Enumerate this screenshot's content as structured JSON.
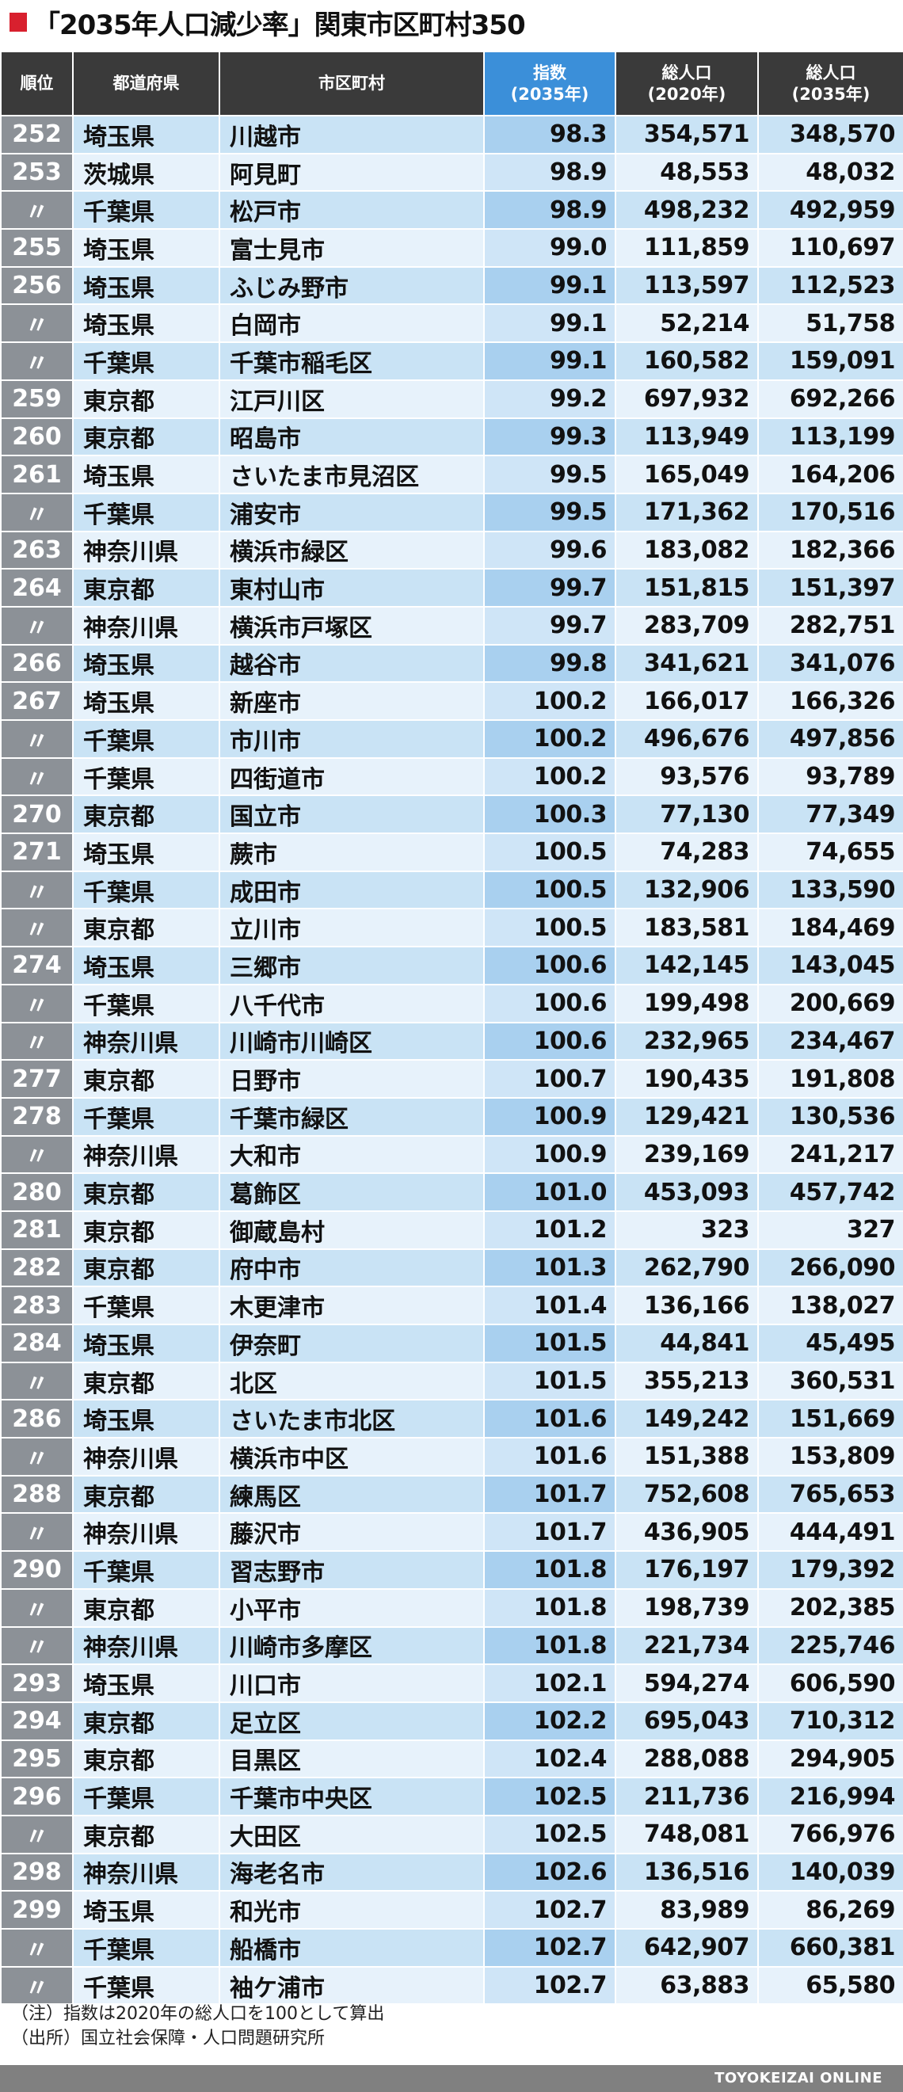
{
  "title": "「2035年人口減少率」関東市区町村350",
  "header": {
    "rank": "順位",
    "pref": "都道府県",
    "city": "市区町村",
    "index_l1": "指数",
    "index_l2": "(2035年)",
    "pop2020_l1": "総人口",
    "pop2020_l2": "(2020年)",
    "pop2035_l1": "総人口",
    "pop2035_l2": "(2035年)"
  },
  "rows": [
    {
      "rank": "252",
      "pref": "埼玉県",
      "city": "川越市",
      "index": "98.3",
      "pop2020": "354,571",
      "pop2035": "348,570"
    },
    {
      "rank": "253",
      "pref": "茨城県",
      "city": "阿見町",
      "index": "98.9",
      "pop2020": "48,553",
      "pop2035": "48,032"
    },
    {
      "rank": "〃",
      "pref": "千葉県",
      "city": "松戸市",
      "index": "98.9",
      "pop2020": "498,232",
      "pop2035": "492,959"
    },
    {
      "rank": "255",
      "pref": "埼玉県",
      "city": "富士見市",
      "index": "99.0",
      "pop2020": "111,859",
      "pop2035": "110,697"
    },
    {
      "rank": "256",
      "pref": "埼玉県",
      "city": "ふじみ野市",
      "index": "99.1",
      "pop2020": "113,597",
      "pop2035": "112,523"
    },
    {
      "rank": "〃",
      "pref": "埼玉県",
      "city": "白岡市",
      "index": "99.1",
      "pop2020": "52,214",
      "pop2035": "51,758"
    },
    {
      "rank": "〃",
      "pref": "千葉県",
      "city": "千葉市稲毛区",
      "index": "99.1",
      "pop2020": "160,582",
      "pop2035": "159,091"
    },
    {
      "rank": "259",
      "pref": "東京都",
      "city": "江戸川区",
      "index": "99.2",
      "pop2020": "697,932",
      "pop2035": "692,266"
    },
    {
      "rank": "260",
      "pref": "東京都",
      "city": "昭島市",
      "index": "99.3",
      "pop2020": "113,949",
      "pop2035": "113,199"
    },
    {
      "rank": "261",
      "pref": "埼玉県",
      "city": "さいたま市見沼区",
      "index": "99.5",
      "pop2020": "165,049",
      "pop2035": "164,206"
    },
    {
      "rank": "〃",
      "pref": "千葉県",
      "city": "浦安市",
      "index": "99.5",
      "pop2020": "171,362",
      "pop2035": "170,516"
    },
    {
      "rank": "263",
      "pref": "神奈川県",
      "city": "横浜市緑区",
      "index": "99.6",
      "pop2020": "183,082",
      "pop2035": "182,366"
    },
    {
      "rank": "264",
      "pref": "東京都",
      "city": "東村山市",
      "index": "99.7",
      "pop2020": "151,815",
      "pop2035": "151,397"
    },
    {
      "rank": "〃",
      "pref": "神奈川県",
      "city": "横浜市戸塚区",
      "index": "99.7",
      "pop2020": "283,709",
      "pop2035": "282,751"
    },
    {
      "rank": "266",
      "pref": "埼玉県",
      "city": "越谷市",
      "index": "99.8",
      "pop2020": "341,621",
      "pop2035": "341,076"
    },
    {
      "rank": "267",
      "pref": "埼玉県",
      "city": "新座市",
      "index": "100.2",
      "pop2020": "166,017",
      "pop2035": "166,326"
    },
    {
      "rank": "〃",
      "pref": "千葉県",
      "city": "市川市",
      "index": "100.2",
      "pop2020": "496,676",
      "pop2035": "497,856"
    },
    {
      "rank": "〃",
      "pref": "千葉県",
      "city": "四街道市",
      "index": "100.2",
      "pop2020": "93,576",
      "pop2035": "93,789"
    },
    {
      "rank": "270",
      "pref": "東京都",
      "city": "国立市",
      "index": "100.3",
      "pop2020": "77,130",
      "pop2035": "77,349"
    },
    {
      "rank": "271",
      "pref": "埼玉県",
      "city": "蕨市",
      "index": "100.5",
      "pop2020": "74,283",
      "pop2035": "74,655"
    },
    {
      "rank": "〃",
      "pref": "千葉県",
      "city": "成田市",
      "index": "100.5",
      "pop2020": "132,906",
      "pop2035": "133,590"
    },
    {
      "rank": "〃",
      "pref": "東京都",
      "city": "立川市",
      "index": "100.5",
      "pop2020": "183,581",
      "pop2035": "184,469"
    },
    {
      "rank": "274",
      "pref": "埼玉県",
      "city": "三郷市",
      "index": "100.6",
      "pop2020": "142,145",
      "pop2035": "143,045"
    },
    {
      "rank": "〃",
      "pref": "千葉県",
      "city": "八千代市",
      "index": "100.6",
      "pop2020": "199,498",
      "pop2035": "200,669"
    },
    {
      "rank": "〃",
      "pref": "神奈川県",
      "city": "川崎市川崎区",
      "index": "100.6",
      "pop2020": "232,965",
      "pop2035": "234,467"
    },
    {
      "rank": "277",
      "pref": "東京都",
      "city": "日野市",
      "index": "100.7",
      "pop2020": "190,435",
      "pop2035": "191,808"
    },
    {
      "rank": "278",
      "pref": "千葉県",
      "city": "千葉市緑区",
      "index": "100.9",
      "pop2020": "129,421",
      "pop2035": "130,536"
    },
    {
      "rank": "〃",
      "pref": "神奈川県",
      "city": "大和市",
      "index": "100.9",
      "pop2020": "239,169",
      "pop2035": "241,217"
    },
    {
      "rank": "280",
      "pref": "東京都",
      "city": "葛飾区",
      "index": "101.0",
      "pop2020": "453,093",
      "pop2035": "457,742"
    },
    {
      "rank": "281",
      "pref": "東京都",
      "city": "御蔵島村",
      "index": "101.2",
      "pop2020": "323",
      "pop2035": "327"
    },
    {
      "rank": "282",
      "pref": "東京都",
      "city": "府中市",
      "index": "101.3",
      "pop2020": "262,790",
      "pop2035": "266,090"
    },
    {
      "rank": "283",
      "pref": "千葉県",
      "city": "木更津市",
      "index": "101.4",
      "pop2020": "136,166",
      "pop2035": "138,027"
    },
    {
      "rank": "284",
      "pref": "埼玉県",
      "city": "伊奈町",
      "index": "101.5",
      "pop2020": "44,841",
      "pop2035": "45,495"
    },
    {
      "rank": "〃",
      "pref": "東京都",
      "city": "北区",
      "index": "101.5",
      "pop2020": "355,213",
      "pop2035": "360,531"
    },
    {
      "rank": "286",
      "pref": "埼玉県",
      "city": "さいたま市北区",
      "index": "101.6",
      "pop2020": "149,242",
      "pop2035": "151,669"
    },
    {
      "rank": "〃",
      "pref": "神奈川県",
      "city": "横浜市中区",
      "index": "101.6",
      "pop2020": "151,388",
      "pop2035": "153,809"
    },
    {
      "rank": "288",
      "pref": "東京都",
      "city": "練馬区",
      "index": "101.7",
      "pop2020": "752,608",
      "pop2035": "765,653"
    },
    {
      "rank": "〃",
      "pref": "神奈川県",
      "city": "藤沢市",
      "index": "101.7",
      "pop2020": "436,905",
      "pop2035": "444,491"
    },
    {
      "rank": "290",
      "pref": "千葉県",
      "city": "習志野市",
      "index": "101.8",
      "pop2020": "176,197",
      "pop2035": "179,392"
    },
    {
      "rank": "〃",
      "pref": "東京都",
      "city": "小平市",
      "index": "101.8",
      "pop2020": "198,739",
      "pop2035": "202,385"
    },
    {
      "rank": "〃",
      "pref": "神奈川県",
      "city": "川崎市多摩区",
      "index": "101.8",
      "pop2020": "221,734",
      "pop2035": "225,746"
    },
    {
      "rank": "293",
      "pref": "埼玉県",
      "city": "川口市",
      "index": "102.1",
      "pop2020": "594,274",
      "pop2035": "606,590"
    },
    {
      "rank": "294",
      "pref": "東京都",
      "city": "足立区",
      "index": "102.2",
      "pop2020": "695,043",
      "pop2035": "710,312"
    },
    {
      "rank": "295",
      "pref": "東京都",
      "city": "目黒区",
      "index": "102.4",
      "pop2020": "288,088",
      "pop2035": "294,905"
    },
    {
      "rank": "296",
      "pref": "千葉県",
      "city": "千葉市中央区",
      "index": "102.5",
      "pop2020": "211,736",
      "pop2035": "216,994"
    },
    {
      "rank": "〃",
      "pref": "東京都",
      "city": "大田区",
      "index": "102.5",
      "pop2020": "748,081",
      "pop2035": "766,976"
    },
    {
      "rank": "298",
      "pref": "神奈川県",
      "city": "海老名市",
      "index": "102.6",
      "pop2020": "136,516",
      "pop2035": "140,039"
    },
    {
      "rank": "299",
      "pref": "埼玉県",
      "city": "和光市",
      "index": "102.7",
      "pop2020": "83,989",
      "pop2035": "86,269"
    },
    {
      "rank": "〃",
      "pref": "千葉県",
      "city": "船橋市",
      "index": "102.7",
      "pop2020": "642,907",
      "pop2035": "660,381"
    },
    {
      "rank": "〃",
      "pref": "千葉県",
      "city": "袖ケ浦市",
      "index": "102.7",
      "pop2020": "63,883",
      "pop2035": "65,580"
    }
  ],
  "notes": {
    "note": "（注）指数は2020年の総人口を100として算出",
    "source": "（出所）国立社会保障・人口問題研究所"
  },
  "footer": {
    "brand": "TOYOKEIZAI ONLINE"
  },
  "colors": {
    "accent": "#d8202e",
    "header": "#3a3a3a",
    "index_header": "#3b8fd9",
    "rank_cell": "#8c9197"
  }
}
